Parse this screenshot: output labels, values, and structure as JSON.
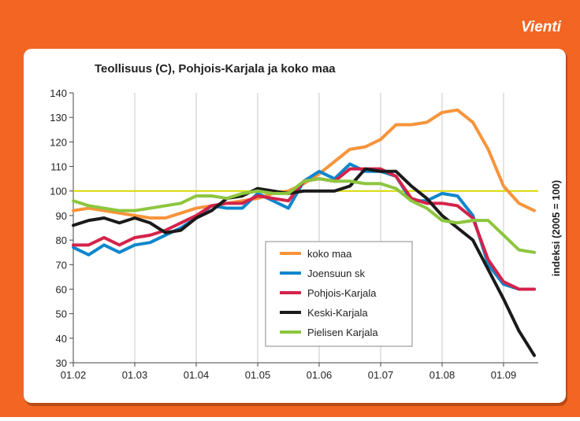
{
  "header": "Vienti",
  "chart_data": {
    "type": "line",
    "title": "Teollisuus (C), Pohjois-Karjala ja koko maa",
    "y_axis_label": "indeksi (2005 = 100)",
    "categories": [
      "01.02",
      null,
      null,
      null,
      "01.03",
      null,
      null,
      null,
      "01.04",
      null,
      null,
      null,
      "01.05",
      null,
      null,
      null,
      "01.06",
      null,
      null,
      null,
      "01.07",
      null,
      null,
      null,
      "01.08",
      null,
      null,
      null,
      "01.09",
      null,
      null
    ],
    "ylim": [
      30,
      140
    ],
    "yticks": [
      30,
      40,
      50,
      60,
      70,
      80,
      90,
      100,
      110,
      120,
      130,
      140
    ],
    "grid": "x",
    "reference": {
      "value": 100,
      "color": "#d8d800"
    },
    "series": [
      {
        "name": "koko maa",
        "color": "#f7943a",
        "values": [
          92,
          93,
          92,
          91,
          90,
          89,
          89,
          91,
          93,
          94,
          95,
          96,
          97,
          99,
          100,
          103,
          107,
          112,
          117,
          118,
          121,
          127,
          127,
          128,
          132,
          133,
          128,
          117,
          102,
          95,
          92
        ]
      },
      {
        "name": "Joensuun sk",
        "color": "#0f86cc",
        "values": [
          77,
          74,
          78,
          75,
          78,
          79,
          82,
          85,
          89,
          94,
          93,
          93,
          99,
          96,
          93,
          104,
          108,
          105,
          111,
          108,
          108,
          106,
          96,
          96,
          99,
          98,
          90,
          70,
          62,
          60,
          60
        ]
      },
      {
        "name": "Pohjois-Karjala",
        "color": "#d4234a",
        "values": [
          78,
          78,
          81,
          78,
          81,
          82,
          84,
          87,
          90,
          94,
          95,
          95,
          98,
          97,
          96,
          104,
          105,
          104,
          109,
          109,
          109,
          106,
          97,
          95,
          95,
          94,
          89,
          72,
          63,
          60,
          60
        ]
      },
      {
        "name": "Keski-Karjala",
        "color": "#1a1a1a",
        "values": [
          86,
          88,
          89,
          87,
          89,
          87,
          83,
          84,
          89,
          92,
          97,
          98,
          101,
          100,
          99,
          100,
          100,
          100,
          102,
          109,
          108,
          108,
          102,
          97,
          90,
          85,
          80,
          68,
          56,
          43,
          33
        ]
      },
      {
        "name": "Pielisen Karjala",
        "color": "#8dc63f",
        "values": [
          96,
          94,
          93,
          92,
          92,
          93,
          94,
          95,
          98,
          98,
          97,
          99,
          100,
          99,
          99,
          104,
          105,
          104,
          104,
          103,
          103,
          101,
          96,
          93,
          88,
          87,
          88,
          88,
          82,
          76,
          75
        ]
      }
    ]
  }
}
